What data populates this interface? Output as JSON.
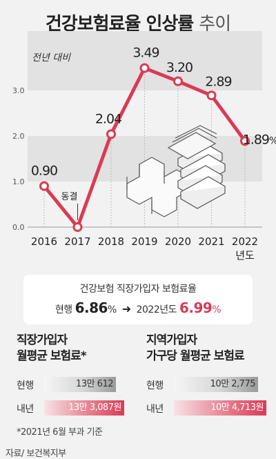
{
  "title_main": "건강보험료율 인상률",
  "title_light": "추이",
  "chart_data": {
    "type": "line",
    "unit_label": "전년 대비",
    "x": [
      "2016",
      "2017",
      "2018",
      "2019",
      "2020",
      "2021",
      "2022"
    ],
    "x_labels": [
      "2016",
      "2017",
      "2018",
      "2019",
      "2020",
      "2021",
      "2022"
    ],
    "x_suffix": "년도",
    "y": [
      0.9,
      0.0,
      2.04,
      3.49,
      3.2,
      2.89,
      1.89
    ],
    "data_labels": [
      "0.90",
      "",
      "2.04",
      "3.49",
      "3.20",
      "2.89",
      "1.89"
    ],
    "last_label_suffix": "%",
    "annotation": {
      "x": "2017",
      "text": "동결"
    },
    "yticks": [
      "0.0",
      "1.0",
      "2.0",
      "3.0"
    ],
    "ylim": [
      0,
      4
    ],
    "line_color": "#d93a55",
    "grid": true
  },
  "summary": {
    "line1": "건강보험 직장가입자 보험료율",
    "current_label": "현행",
    "current_rate": "6.86",
    "next_label": "2022년도",
    "next_rate": "6.99",
    "pct": "%"
  },
  "columns": [
    {
      "heading_1": "직장가입자",
      "heading_2": "월평균 보험료*",
      "rows": [
        {
          "label": "현행",
          "value": "13만 612"
        },
        {
          "label": "내년",
          "value": "13만 3,087원"
        }
      ]
    },
    {
      "heading_1": "지역가입자",
      "heading_2": "가구당 월평균 보험료",
      "rows": [
        {
          "label": "현행",
          "value": "10만 2,775"
        },
        {
          "label": "내년",
          "value": "10만 4,713원"
        }
      ]
    }
  ],
  "footnote": "*2021년 6월 부과 기준",
  "source": "자료/ 보건복지부",
  "colors": {
    "accent": "#d93a55",
    "gray_bar": "#9a9a9a"
  }
}
